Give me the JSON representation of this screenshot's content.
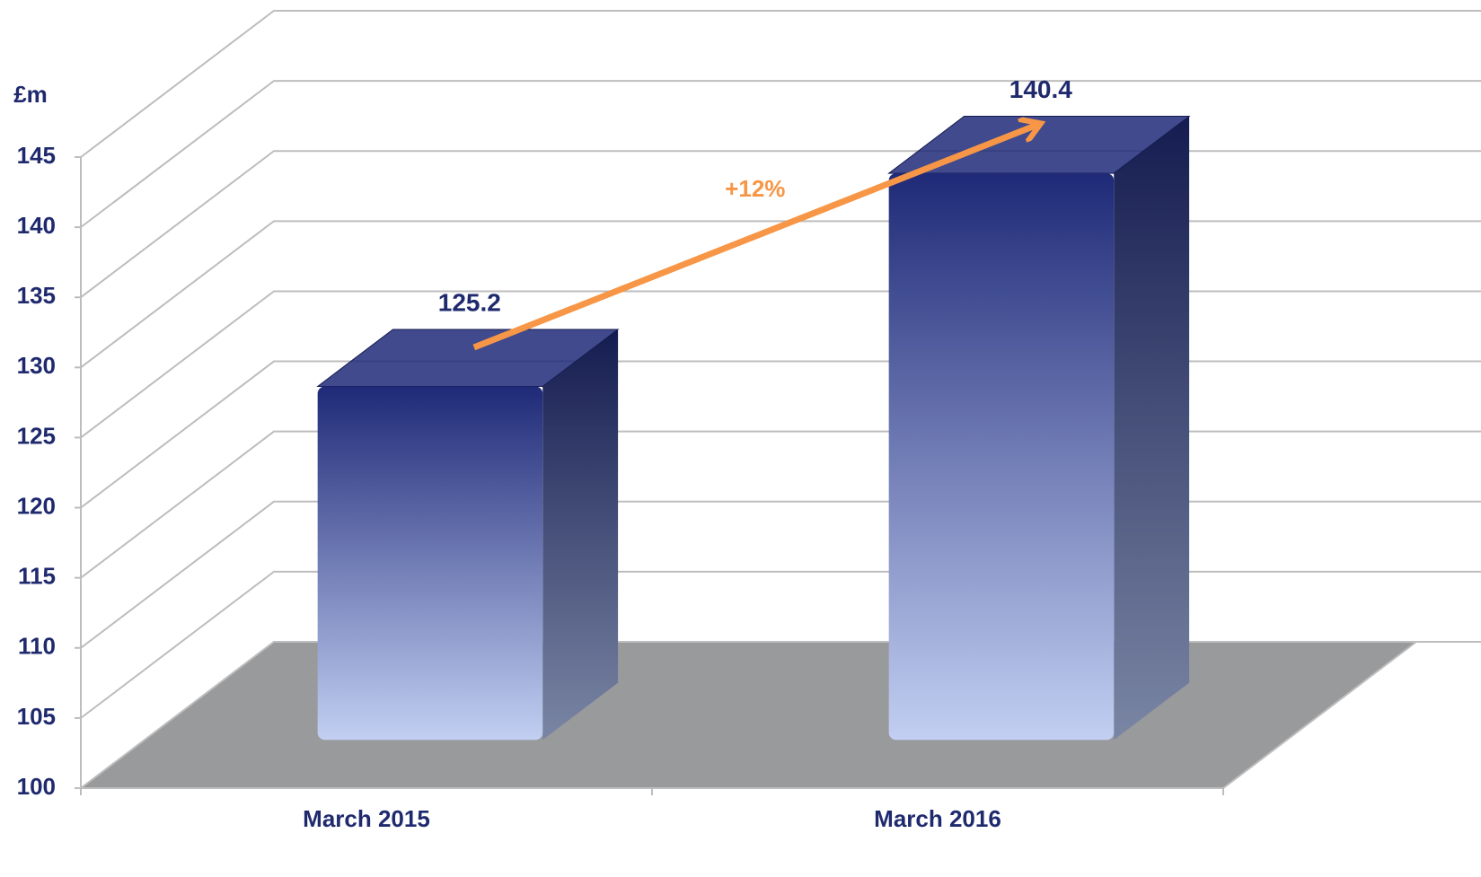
{
  "chart_data": {
    "type": "bar3d",
    "y_label": "£m",
    "categories": [
      "March 2015",
      "March 2016"
    ],
    "values": [
      125.2,
      140.4
    ],
    "color": "#1f2a78",
    "ylim": [
      100,
      145
    ],
    "yticks": [
      100,
      105,
      110,
      115,
      120,
      125,
      130,
      135,
      140,
      145
    ],
    "grid": true,
    "annotation": {
      "text": "+12%",
      "color": "#f79646"
    }
  }
}
